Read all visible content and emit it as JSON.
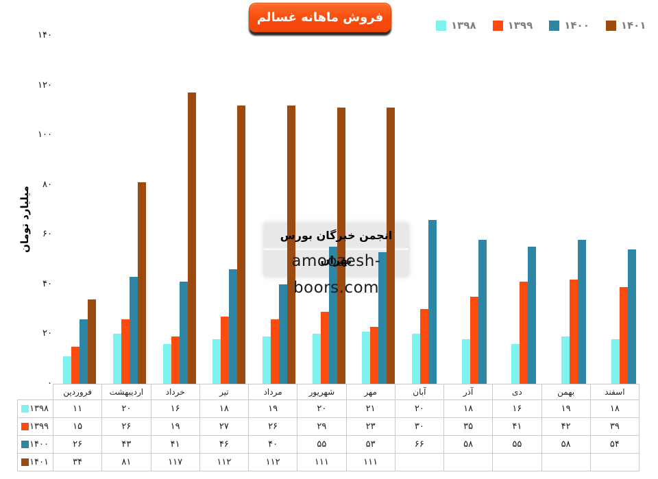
{
  "page": {
    "background": "#ffffff"
  },
  "title_button": {
    "bg_top": "#fc6c30",
    "bg_bottom": "#f2450a",
    "text_color": "#ffffff"
  },
  "watermark": {
    "line1": "انجمن خبرگان بورس تهران",
    "line2": "amoozesh-boors.com",
    "bg": "#e8e8e8"
  },
  "chart_data": {
    "type": "bar",
    "title": "فروش ماهانه غسالم",
    "ylabel": "میلیارد تومان",
    "xlabel": "",
    "categories": [
      "فروردین",
      "اردیبهشت",
      "خرداد",
      "تیر",
      "مرداد",
      "شهریور",
      "مهر",
      "آبان",
      "آذر",
      "دی",
      "بهمن",
      "اسفند"
    ],
    "series": [
      {
        "name": "۱۳۹۸",
        "color": "#7EF2EE",
        "values": [
          11,
          20,
          16,
          18,
          19,
          20,
          21,
          20,
          18,
          16,
          19,
          18
        ]
      },
      {
        "name": "۱۳۹۹",
        "color": "#FB4B0E",
        "values": [
          15,
          26,
          19,
          27,
          26,
          29,
          23,
          30,
          35,
          41,
          42,
          39
        ]
      },
      {
        "name": "۱۴۰۰",
        "color": "#2E86A5",
        "values": [
          26,
          43,
          41,
          46,
          40,
          55,
          53,
          66,
          58,
          55,
          58,
          54
        ]
      },
      {
        "name": "۱۴۰۱",
        "color": "#9C4A10",
        "values": [
          34,
          81,
          117,
          112,
          112,
          111,
          111,
          null,
          null,
          null,
          null,
          null
        ]
      }
    ],
    "ylim": [
      0,
      140
    ],
    "yticks": [
      0,
      20,
      40,
      60,
      80,
      100,
      120,
      140
    ],
    "grid": false,
    "legend_position": "top-right",
    "legend_text_color": "#7f7f7f",
    "table_border_color": "#c9c9c9"
  }
}
